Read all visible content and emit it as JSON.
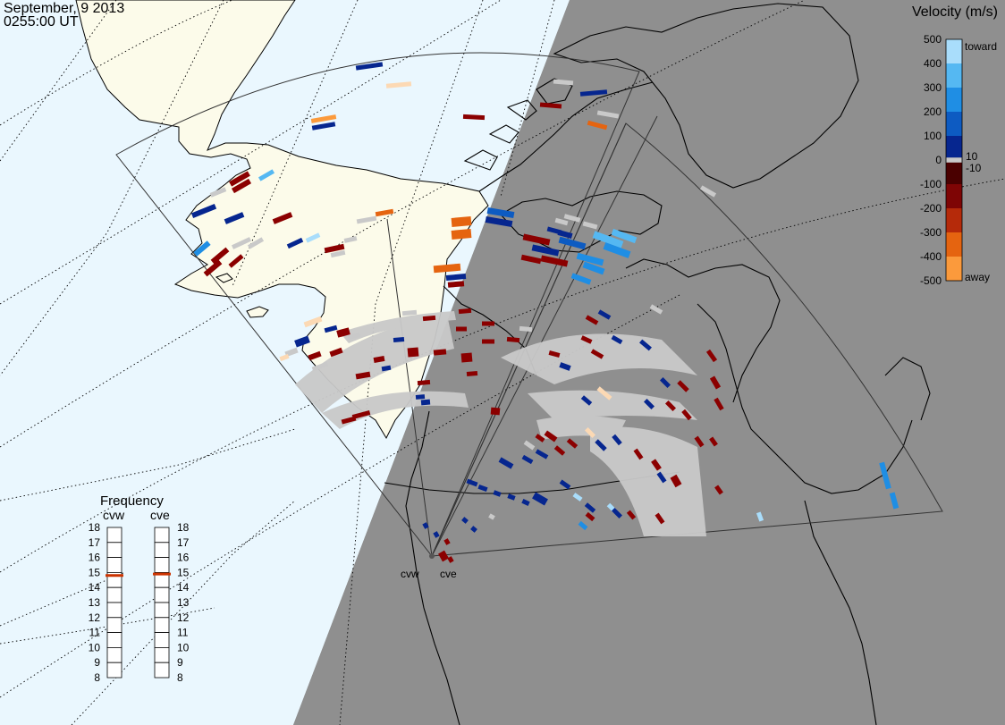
{
  "header": {
    "date": "September, 9 2013",
    "time": "0255:00 UT"
  },
  "colorbar": {
    "title": "Velocity (m/s)",
    "ticks": [
      {
        "label": "500",
        "value": 500
      },
      {
        "label": "400",
        "value": 400
      },
      {
        "label": "300",
        "value": 300
      },
      {
        "label": "200",
        "value": 200
      },
      {
        "label": "100",
        "value": 100
      },
      {
        "label": "10",
        "value": 10
      },
      {
        "label": "0",
        "value": 0
      },
      {
        "label": "-10",
        "value": -10
      },
      {
        "label": "-100",
        "value": -100
      },
      {
        "label": "-200",
        "value": -200
      },
      {
        "label": "-300",
        "value": -300
      },
      {
        "label": "-400",
        "value": -400
      },
      {
        "label": "-500",
        "value": -500
      }
    ],
    "toward_label": "toward",
    "away_label": "away",
    "colors": [
      {
        "value": 500,
        "hex": "#a9ddfb"
      },
      {
        "value": 400,
        "hex": "#55b8f2"
      },
      {
        "value": 300,
        "hex": "#1f8ee4"
      },
      {
        "value": 200,
        "hex": "#0d5bc2"
      },
      {
        "value": 100,
        "hex": "#06268f"
      },
      {
        "value": 10,
        "hex": "#020c5c"
      },
      {
        "value": 0,
        "hex": "#c9c9c9"
      },
      {
        "value": -10,
        "hex": "#4a0000"
      },
      {
        "value": -100,
        "hex": "#7e0505"
      },
      {
        "value": -200,
        "hex": "#b52a0a"
      },
      {
        "value": -300,
        "hex": "#e56410"
      },
      {
        "value": -400,
        "hex": "#fb9a3c"
      },
      {
        "value": -500,
        "hex": "#fcd9b4"
      }
    ]
  },
  "frequency": {
    "title": "Frequency",
    "radars": [
      {
        "name": "cvw",
        "value": 14.8
      },
      {
        "name": "cve",
        "value": 14.9
      }
    ],
    "scale": [
      "18",
      "17",
      "16",
      "15",
      "14",
      "13",
      "12",
      "11",
      "10",
      "9",
      "8"
    ],
    "marker_color": "#cc3300"
  },
  "radars": [
    {
      "code": "cvw"
    },
    {
      "code": "cve"
    }
  ],
  "colors": {
    "night": "#8f8f8f",
    "ocean_day": "#eaf7fe",
    "land_day": "#fcfbea",
    "ground_scatter": "#c9c9c9",
    "coast": "#000000"
  }
}
